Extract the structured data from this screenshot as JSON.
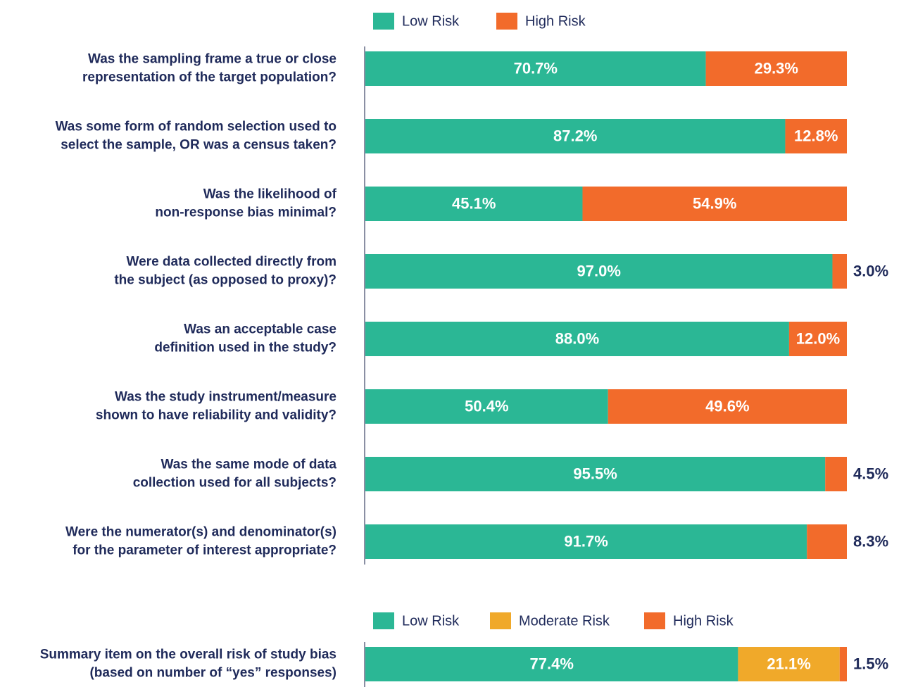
{
  "chart_data": [
    {
      "type": "stacked-bar-horizontal",
      "categories": [
        [
          "Was the sampling frame a true or close",
          "representation of the target population?"
        ],
        [
          "Was some form of random selection used to",
          "select the sample, OR was a census taken?"
        ],
        [
          "Was the likelihood of",
          "non-response bias minimal?"
        ],
        [
          "Were data collected directly from",
          "the subject (as opposed to proxy)?"
        ],
        [
          "Was an acceptable case",
          "definition used in the study?"
        ],
        [
          "Was the study instrument/measure",
          "shown to have reliability and validity?"
        ],
        [
          "Was the same mode of data",
          "collection used for all subjects?"
        ],
        [
          "Were the numerator(s) and denominator(s)",
          "for the parameter of interest appropriate?"
        ]
      ],
      "series": [
        {
          "name": "Low Risk",
          "color": "#2bb795",
          "values": [
            70.7,
            87.2,
            45.1,
            97.0,
            88.0,
            50.4,
            95.5,
            91.7
          ],
          "value_labels": [
            "70.7%",
            "87.2%",
            "45.1%",
            "97.0%",
            "88.0%",
            "50.4%",
            "95.5%",
            "91.7%"
          ]
        },
        {
          "name": "High Risk",
          "color": "#f26b2b",
          "values": [
            29.3,
            12.8,
            54.9,
            3.0,
            12.0,
            49.6,
            4.5,
            8.3
          ],
          "value_labels": [
            "29.3%",
            "12.8%",
            "54.9%",
            "3.0%",
            "12.0%",
            "49.6%",
            "4.5%",
            "8.3%"
          ]
        }
      ]
    },
    {
      "type": "stacked-bar-horizontal",
      "categories": [
        [
          "Summary item on the overall risk of study bias",
          "(based on number of “yes” responses)"
        ]
      ],
      "series": [
        {
          "name": "Low Risk",
          "color": "#2bb795",
          "values": [
            77.4
          ],
          "value_labels": [
            "77.4%"
          ]
        },
        {
          "name": "Moderate Risk",
          "color": "#f0a92a",
          "values": [
            21.1
          ],
          "value_labels": [
            "21.1%"
          ]
        },
        {
          "name": "High Risk",
          "color": "#f26b2b",
          "values": [
            1.5
          ],
          "value_labels": [
            "1.5%"
          ]
        }
      ]
    }
  ]
}
